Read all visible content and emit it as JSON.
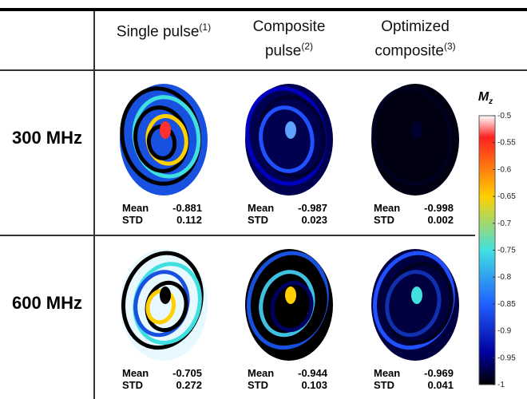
{
  "header": {
    "columns": [
      {
        "text": "Single pulse",
        "note": "(1)"
      },
      {
        "text": "Composite pulse",
        "note": "(2)"
      },
      {
        "text": "Optimized composite",
        "note": "(3)"
      }
    ]
  },
  "stat_labels": {
    "mean": "Mean",
    "std": "STD"
  },
  "rows": [
    {
      "label": "300 MHz",
      "cells": [
        {
          "mean": -0.881,
          "std": 0.112
        },
        {
          "mean": -0.987,
          "std": 0.023
        },
        {
          "mean": -0.998,
          "std": 0.002
        }
      ]
    },
    {
      "label": "600 MHz",
      "cells": [
        {
          "mean": -0.705,
          "std": 0.272
        },
        {
          "mean": -0.944,
          "std": 0.103
        },
        {
          "mean": -0.969,
          "std": 0.041
        }
      ]
    }
  ],
  "colorbar": {
    "label": "M",
    "label_sub": "z",
    "ylim": [
      -1,
      -0.5
    ],
    "ticks": [
      -0.5,
      -0.55,
      -0.6,
      -0.65,
      -0.7,
      -0.75,
      -0.8,
      -0.85,
      -0.9,
      -0.95,
      -1
    ]
  }
}
